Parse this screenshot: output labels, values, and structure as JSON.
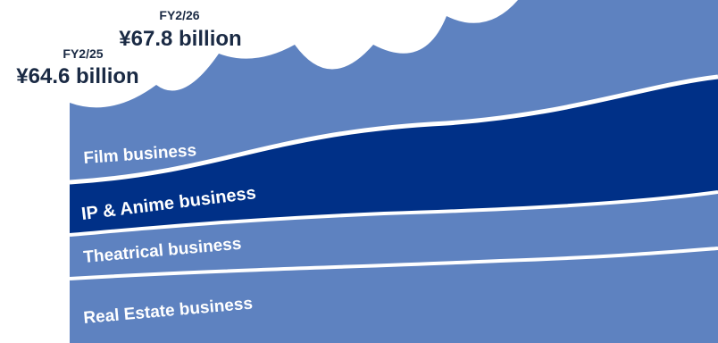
{
  "annotations": [
    {
      "period": "FY2/25",
      "value": "¥64.6 billion"
    },
    {
      "period": "FY2/26",
      "value": "¥67.8 billion"
    }
  ],
  "segments": [
    {
      "label": "Film business",
      "color": "#5e82c0"
    },
    {
      "label": "IP & Anime business",
      "color": "#003087"
    },
    {
      "label": "Theatrical business",
      "color": "#5e82c0"
    },
    {
      "label": "Real Estate business",
      "color": "#5e82c0"
    }
  ],
  "colors": {
    "background": "#ffffff",
    "segment_light": "#5e82c0",
    "segment_dark": "#003087",
    "divider": "#ffffff",
    "label_dark": "#1a2a44"
  }
}
